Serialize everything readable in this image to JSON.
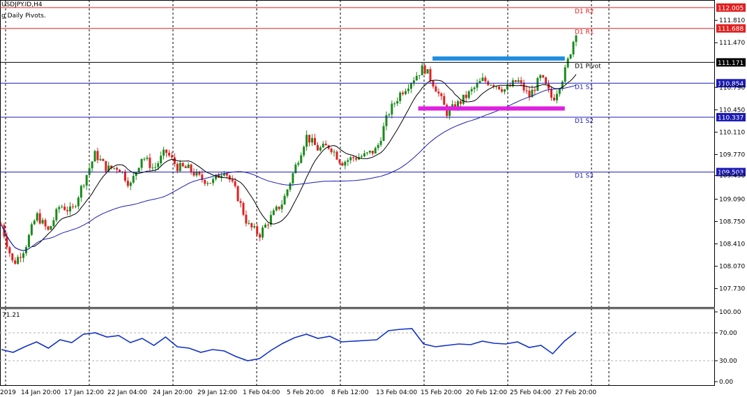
{
  "header": {
    "symbol_line": "USDJPY.ID,H4",
    "indicator_line": "g Daily Pivots."
  },
  "colors": {
    "bull": "#1a8a1a",
    "bear": "#e02020",
    "ma_fast": "#000000",
    "ma_slow": "#1c1cb4",
    "pivot_red": "#e02020",
    "pivot_blue": "#1c1cb4",
    "pivot_black": "#000000",
    "zone_blue": "#1e8fe0",
    "zone_magenta": "#e020e0",
    "rsi_line": "#1030c8"
  },
  "chart_data": [
    {
      "type": "candlestick",
      "title": "USDJPY.ID,H4",
      "ylim": [
        107.45,
        112.12
      ],
      "y_ticks": [
        "111.810",
        "111.470",
        "110.790",
        "110.450",
        "110.110",
        "109.770",
        "109.450",
        "109.090",
        "108.750",
        "108.410",
        "108.070",
        "107.730"
      ],
      "x_labels": [
        "2019",
        "14 Jan 20:00",
        "17 Jan 12:00",
        "22 Jan 04:00",
        "24 Jan 20:00",
        "29 Jan 12:00",
        "1 Feb 04:00",
        "5 Feb 20:00",
        "8 Feb 12:00",
        "13 Feb 04:00",
        "15 Feb 20:00",
        "20 Feb 12:00",
        "25 Feb 04:00",
        "27 Feb 20:00"
      ],
      "price_path": [
        108.7,
        108.1,
        108.35,
        108.85,
        108.6,
        109.0,
        108.9,
        109.35,
        109.78,
        109.55,
        109.58,
        109.3,
        109.75,
        109.55,
        109.82,
        109.58,
        109.55,
        109.4,
        109.35,
        109.55,
        109.2,
        108.7,
        108.55,
        108.82,
        109.05,
        109.55,
        110.05,
        109.85,
        109.9,
        109.65,
        109.72,
        109.75,
        109.85,
        110.4,
        110.7,
        110.9,
        111.1,
        110.8,
        110.4,
        110.55,
        110.72,
        110.9,
        110.85,
        110.75,
        110.9,
        110.65,
        110.95,
        110.6,
        111.0,
        111.65
      ],
      "pivot_lines": [
        {
          "name": "D1 R2",
          "value": 112.005,
          "label": "112.005",
          "color": "red"
        },
        {
          "name": "D1 R1",
          "value": 111.688,
          "label": "111.688",
          "color": "red"
        },
        {
          "name": "D1 Pivot",
          "value": 111.171,
          "label": "111.171",
          "color": "black"
        },
        {
          "name": "D1 S1",
          "value": 110.854,
          "label": "110.854",
          "color": "blue"
        },
        {
          "name": "D1 S2",
          "value": 110.337,
          "label": "110.337",
          "color": "blue"
        },
        {
          "name": "D1 S3",
          "value": 109.503,
          "label": "109.503",
          "color": "blue"
        }
      ],
      "zones": [
        {
          "color": "blue",
          "value": 111.23,
          "x_from": 0.605,
          "x_to": 0.79
        },
        {
          "color": "magenta",
          "value": 110.47,
          "x_from": 0.585,
          "x_to": 0.79
        }
      ]
    },
    {
      "type": "line",
      "title": "71.21",
      "ylim": [
        -5,
        105
      ],
      "y_ticks": [
        "100.00",
        "70.00",
        "30.00",
        "0.00"
      ],
      "levels": [
        70,
        30
      ],
      "values": [
        46,
        42,
        50,
        57,
        48,
        60,
        56,
        68,
        70,
        64,
        66,
        56,
        62,
        52,
        64,
        50,
        48,
        42,
        46,
        44,
        36,
        30,
        33,
        45,
        55,
        63,
        68,
        62,
        65,
        57,
        58,
        59,
        60,
        73,
        75,
        76,
        54,
        50,
        52,
        54,
        53,
        58,
        55,
        54,
        57,
        49,
        52,
        40,
        58,
        71.21
      ]
    }
  ]
}
